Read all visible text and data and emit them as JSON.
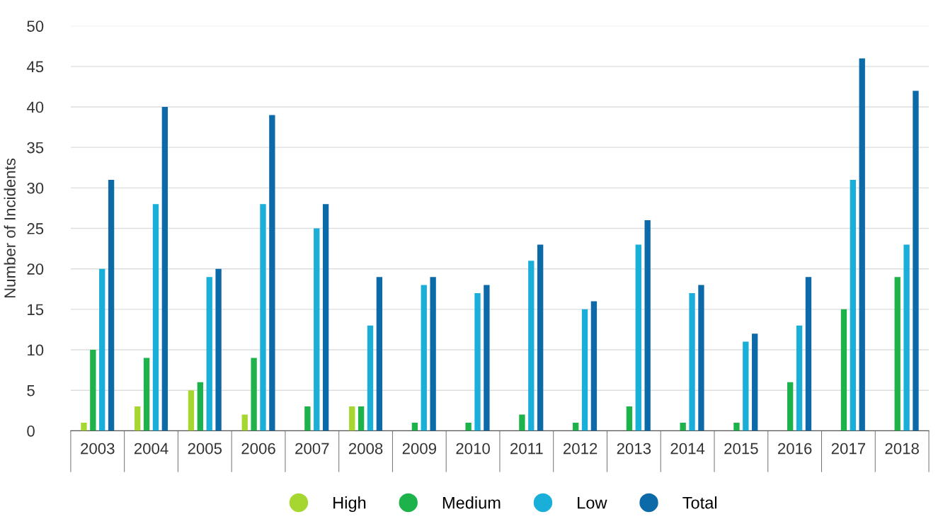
{
  "chart_data": {
    "type": "bar",
    "ylabel": "Number of Incidents",
    "categories": [
      "2003",
      "2004",
      "2005",
      "2006",
      "2007",
      "2008",
      "2009",
      "2010",
      "2011",
      "2012",
      "2013",
      "2014",
      "2015",
      "2016",
      "2017",
      "2018"
    ],
    "series": [
      {
        "name": "High",
        "color": "#a6d730",
        "values": [
          1,
          3,
          5,
          2,
          0,
          3,
          0,
          0,
          0,
          0,
          0,
          0,
          0,
          0,
          0,
          0
        ]
      },
      {
        "name": "Medium",
        "color": "#1db34a",
        "values": [
          10,
          9,
          6,
          9,
          3,
          3,
          1,
          1,
          2,
          1,
          3,
          1,
          1,
          6,
          15,
          19
        ]
      },
      {
        "name": "Low",
        "color": "#1aafd9",
        "values": [
          20,
          28,
          19,
          28,
          25,
          13,
          18,
          17,
          21,
          15,
          23,
          17,
          11,
          13,
          31,
          23
        ]
      },
      {
        "name": "Total",
        "color": "#0d6aa8",
        "values": [
          31,
          40,
          20,
          39,
          28,
          19,
          19,
          18,
          23,
          16,
          26,
          18,
          12,
          19,
          46,
          42
        ]
      }
    ],
    "ylim": [
      0,
      50
    ],
    "yticks": [
      0,
      5,
      10,
      15,
      20,
      25,
      30,
      35,
      40,
      45,
      50
    ],
    "grid": "y",
    "legend": "bottom"
  }
}
